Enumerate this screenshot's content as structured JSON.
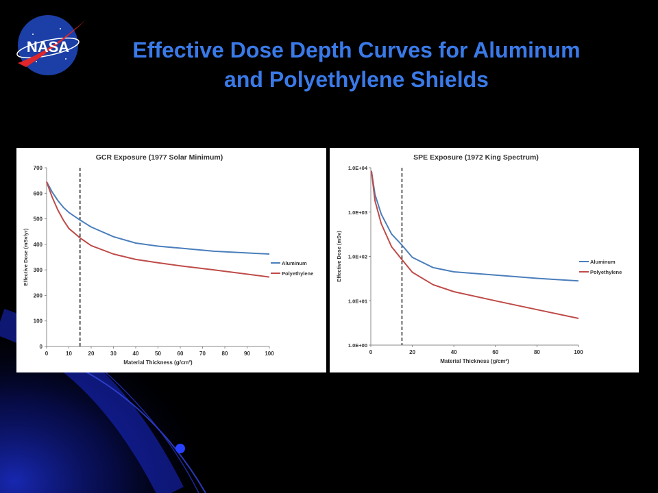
{
  "slide": {
    "title_line1": "Effective Dose Depth Curves for Aluminum",
    "title_line2": "and Polyethylene Shields",
    "logo_text": "NASA"
  },
  "colors": {
    "aluminum": "#4a7ebb",
    "polyethylene": "#be4b48",
    "title": "#3a7ae8"
  },
  "chart_data": [
    {
      "type": "line",
      "title": "GCR Exposure (1977 Solar Minimum)",
      "xlabel": "Material Thickness (g/cm²)",
      "ylabel": "Effective Dose (mSv/yr)",
      "xlim": [
        0,
        100
      ],
      "ylim": [
        0,
        700
      ],
      "xticks": [
        0,
        10,
        20,
        30,
        40,
        50,
        60,
        70,
        80,
        90,
        100
      ],
      "yticks": [
        0,
        100,
        200,
        300,
        400,
        500,
        600,
        700
      ],
      "ytick_labels": [
        "0",
        "100",
        "200",
        "300",
        "400",
        "500",
        "600",
        "700"
      ],
      "scale": "linear",
      "grid": false,
      "legend_position": "right",
      "reference_line_x": 15,
      "series": [
        {
          "name": "Aluminum",
          "x": [
            0,
            2.5,
            5,
            7.5,
            10,
            15,
            20,
            30,
            40,
            50,
            60,
            75,
            100
          ],
          "y": [
            645,
            605,
            572,
            545,
            525,
            495,
            468,
            430,
            405,
            393,
            385,
            373,
            362
          ]
        },
        {
          "name": "Polyethylene",
          "x": [
            0,
            2.5,
            5,
            7.5,
            10,
            15,
            20,
            30,
            40,
            50,
            60,
            75,
            100
          ],
          "y": [
            645,
            585,
            535,
            495,
            462,
            425,
            395,
            362,
            341,
            328,
            316,
            300,
            272
          ]
        }
      ]
    },
    {
      "type": "line",
      "title": "SPE Exposure (1972 King Spectrum)",
      "xlabel": "Material Thickness (g/cm²)",
      "ylabel": "Effective Dose (mSv)",
      "xlim": [
        0,
        100
      ],
      "ylim": [
        1,
        10000
      ],
      "xticks": [
        0,
        20,
        40,
        60,
        80,
        100
      ],
      "yticks": [
        1,
        10,
        100,
        1000,
        10000
      ],
      "ytick_labels": [
        "1.0E+00",
        "1.0E+01",
        "1.0E+02",
        "1.0E+03",
        "1.0E+04"
      ],
      "scale": "log",
      "grid": false,
      "legend_position": "right",
      "reference_line_x": 15,
      "series": [
        {
          "name": "Aluminum",
          "x": [
            0.3,
            2,
            5,
            10,
            15,
            20,
            30,
            40,
            60,
            80,
            100
          ],
          "y": [
            8500,
            2500,
            900,
            320,
            180,
            95,
            56,
            45,
            38,
            32,
            28
          ]
        },
        {
          "name": "Polyethylene",
          "x": [
            0.3,
            2,
            5,
            10,
            15,
            20,
            30,
            40,
            60,
            80,
            100
          ],
          "y": [
            8500,
            1800,
            550,
            165,
            85,
            44,
            23,
            16,
            10,
            6.3,
            4
          ]
        }
      ]
    }
  ]
}
